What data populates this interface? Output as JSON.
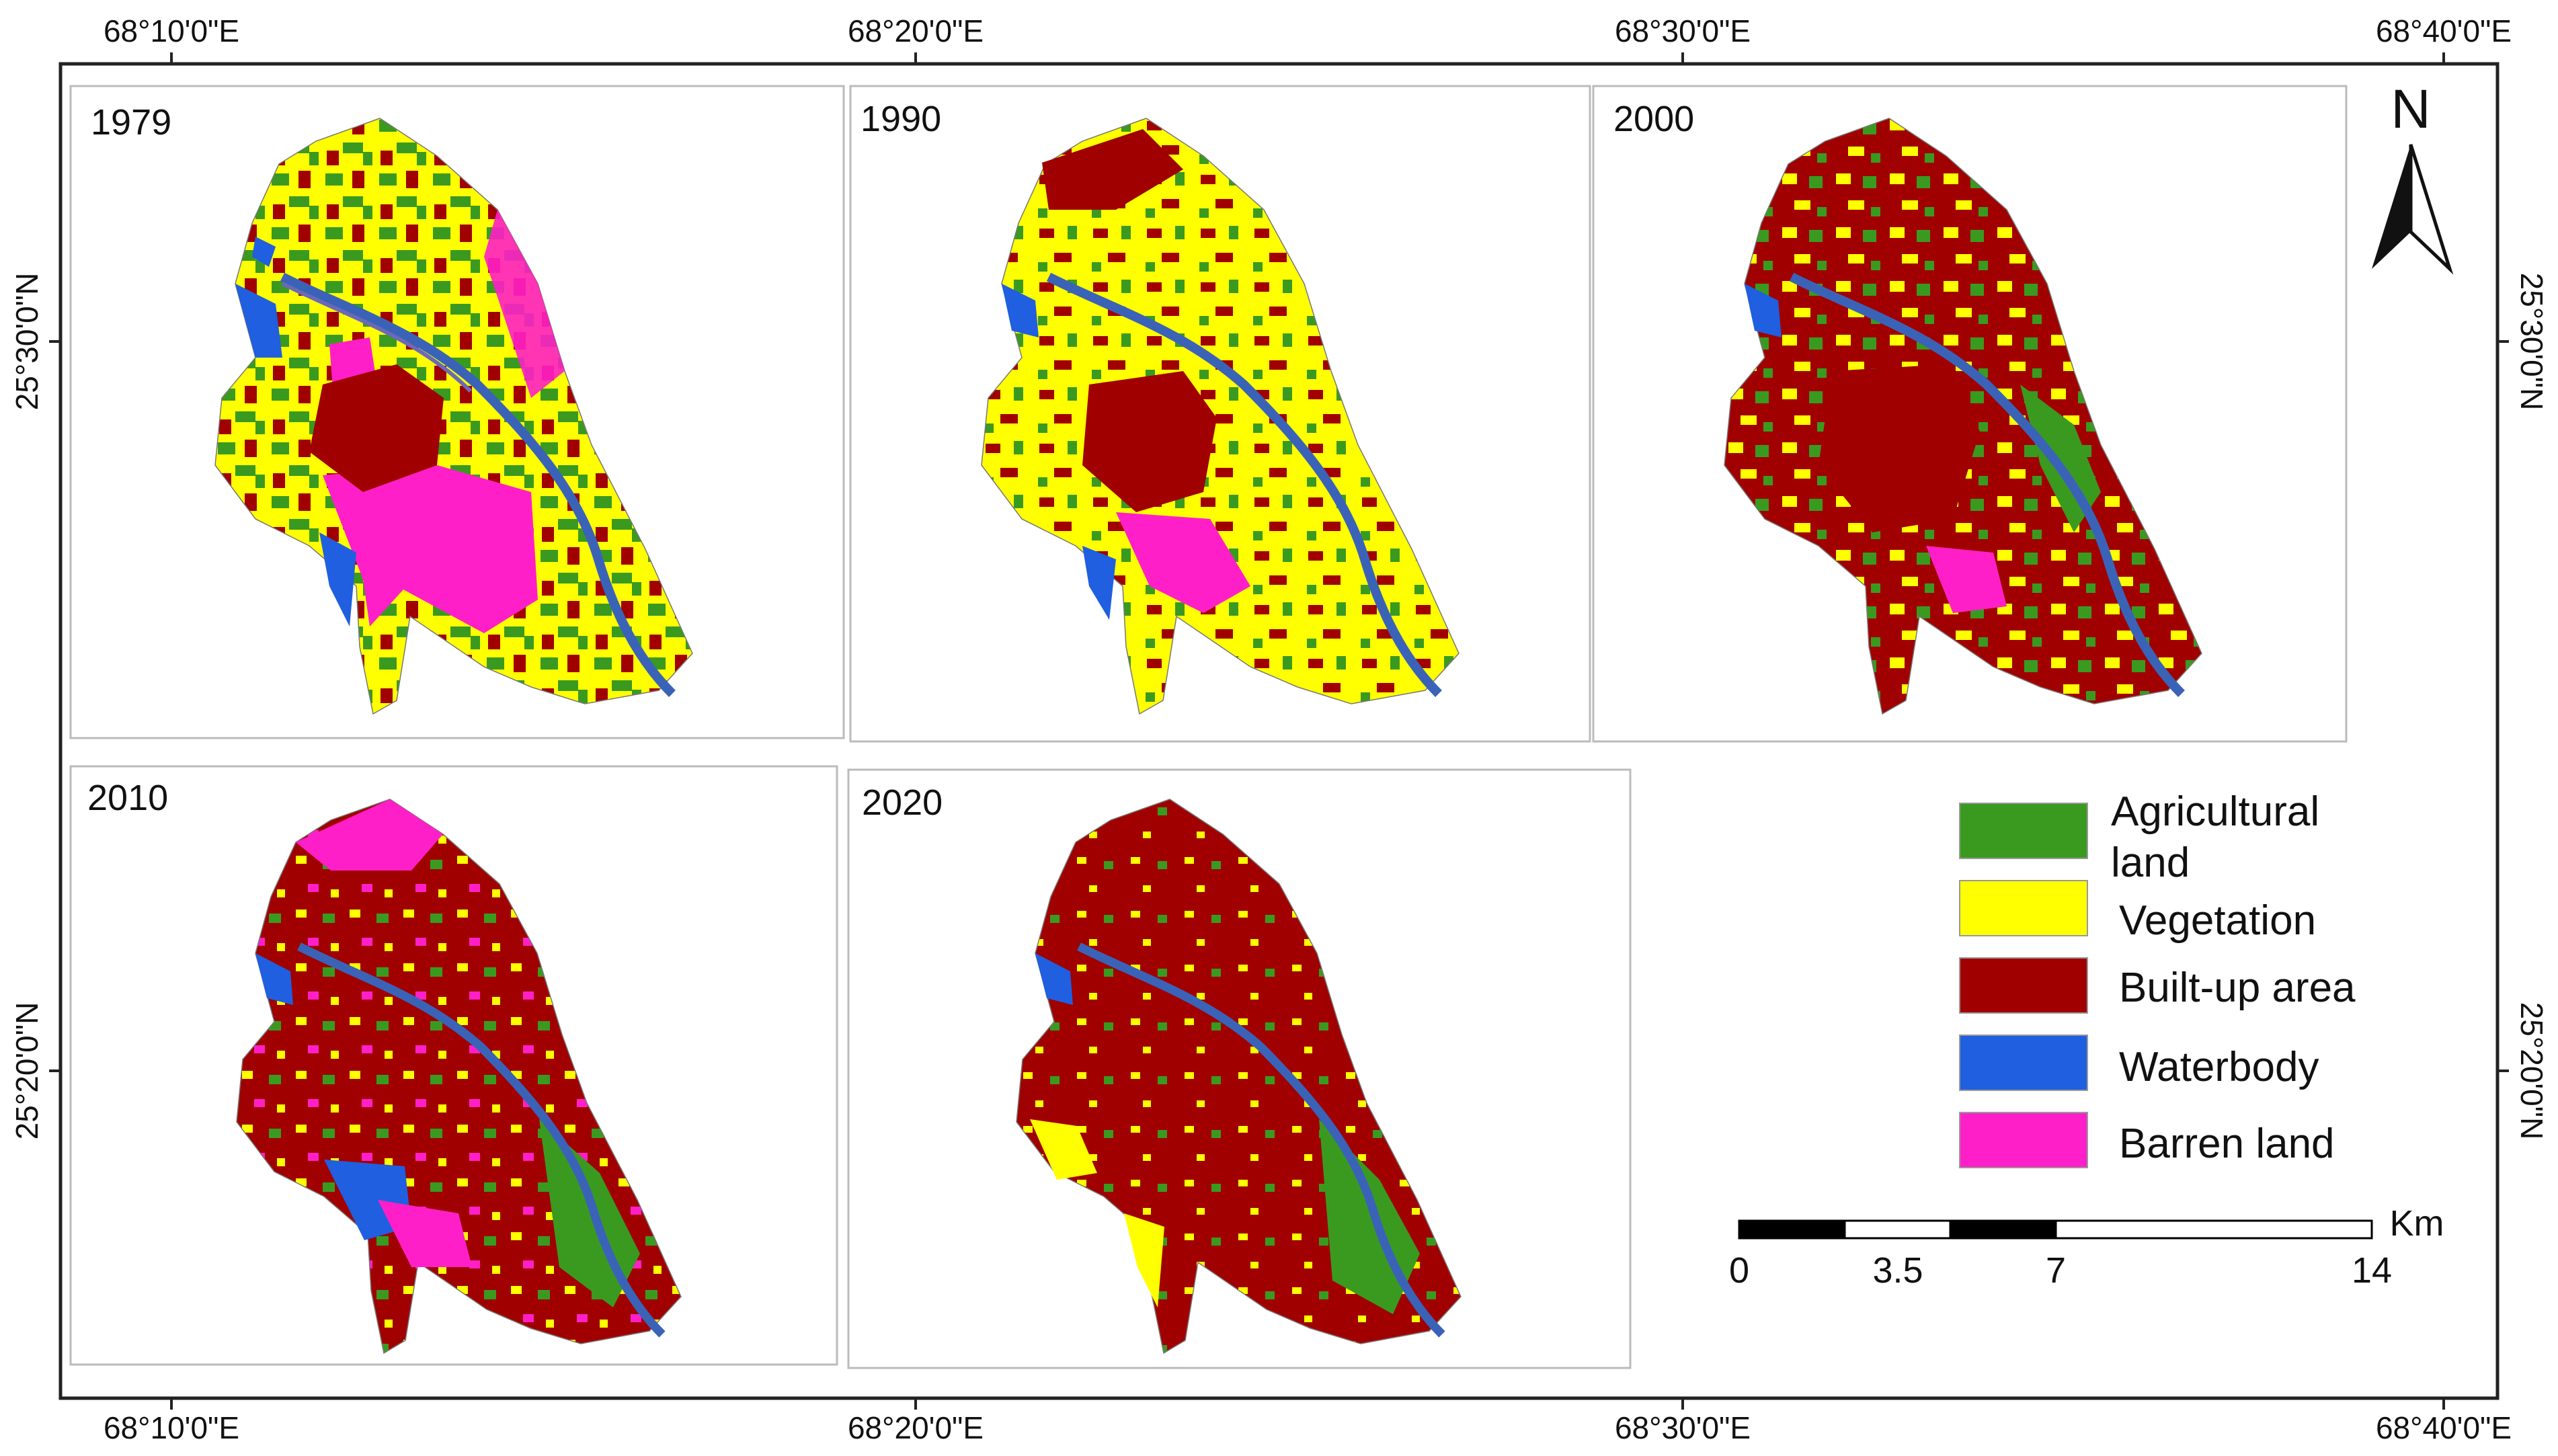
{
  "graticule": {
    "top": [
      "68°10'0\"E",
      "68°20'0\"E",
      "68°30'0\"E",
      "68°40'0\"E"
    ],
    "bottom": [
      "68°10'0\"E",
      "68°20'0\"E",
      "68°30'0\"E",
      "68°40'0\"E"
    ],
    "left": [
      "25°30'0\"N",
      "25°20'0\"N"
    ],
    "right": [
      "25°30'0\"N",
      "25°20'0\"N"
    ]
  },
  "panels": [
    {
      "year": "1979",
      "dominant": "mixed-agri-vegetation"
    },
    {
      "year": "1990",
      "dominant": "vegetation"
    },
    {
      "year": "2000",
      "dominant": "built-up"
    },
    {
      "year": "2010",
      "dominant": "built-up"
    },
    {
      "year": "2020",
      "dominant": "built-up"
    }
  ],
  "north_arrow": {
    "label": "N"
  },
  "legend": {
    "items": [
      {
        "label": "Agricultural land",
        "color": "#3a9a1f"
      },
      {
        "label": "Vegetation",
        "color": "#ffff00"
      },
      {
        "label": "Built-up area",
        "color": "#a00000"
      },
      {
        "label": "Waterbody",
        "color": "#1f5fe0"
      },
      {
        "label": "Barren land",
        "color": "#ff1fc8"
      }
    ]
  },
  "scale_bar": {
    "unit": "Km",
    "ticks": [
      "0",
      "3.5",
      "7",
      "14"
    ]
  },
  "colors": {
    "frame": "#222222",
    "panel_border": "#bbbbbb",
    "river": "#3a63b8"
  }
}
